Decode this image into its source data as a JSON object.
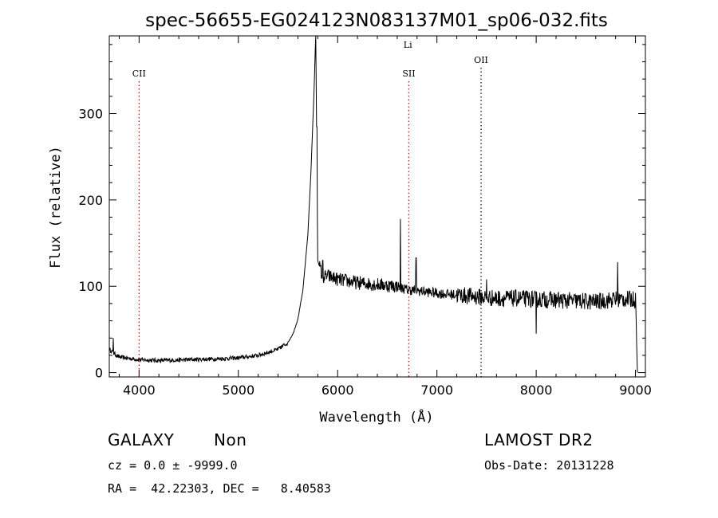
{
  "chart_data": {
    "type": "line",
    "title": "spec-56655-EG024123N083137M01_sp06-032.fits",
    "xlabel": "Wavelength (Å)",
    "ylabel": "Flux (relative)",
    "xlim": [
      3700,
      9100
    ],
    "ylim": [
      -5,
      390
    ],
    "xticks": [
      4000,
      5000,
      6000,
      7000,
      8000,
      9000
    ],
    "xtick_labels": [
      "4000",
      "5000",
      "6000",
      "7000",
      "8000",
      "9000"
    ],
    "yticks": [
      0,
      100,
      200,
      300
    ],
    "ytick_labels": [
      "0",
      "100",
      "200",
      "300"
    ],
    "grid": false,
    "line_color": "#000000",
    "spectrum_anchors": {
      "x": [
        3700,
        3750,
        3800,
        4000,
        4200,
        4500,
        4800,
        5000,
        5200,
        5400,
        5500,
        5550,
        5600,
        5650,
        5700,
        5730,
        5760,
        5780,
        5800,
        5850,
        5900,
        6000,
        6200,
        6400,
        6600,
        6700,
        6800,
        7000,
        7200,
        7400,
        7600,
        7800,
        8000,
        8200,
        8400,
        8600,
        8800,
        8900,
        9000,
        9020
      ],
      "y": [
        27,
        22,
        18,
        15,
        14,
        15,
        16,
        17,
        20,
        27,
        35,
        45,
        62,
        95,
        160,
        230,
        320,
        392,
        130,
        110,
        112,
        108,
        104,
        102,
        100,
        96,
        95,
        92,
        90,
        88,
        86,
        86,
        85,
        84,
        83,
        82,
        85,
        85,
        85,
        0
      ]
    },
    "spike_features": [
      {
        "x": 3740,
        "y": 40
      },
      {
        "x": 5790,
        "y": 285
      },
      {
        "x": 5850,
        "y": 130
      },
      {
        "x": 6632,
        "y": 178
      },
      {
        "x": 6790,
        "y": 133
      },
      {
        "x": 7500,
        "y": 108
      },
      {
        "x": 8000,
        "y": 45
      },
      {
        "x": 8820,
        "y": 128
      }
    ],
    "lines": [
      {
        "label": "CII",
        "x": 4000,
        "color": "#cc0000",
        "level": 1
      },
      {
        "label": "Li",
        "x": 6707,
        "color": "#cc0000",
        "level": 0
      },
      {
        "label": "SII",
        "x": 6717,
        "color": "#cc0000",
        "level": 1
      },
      {
        "label": "OII",
        "x": 7445,
        "color": "#000000",
        "level": 2
      }
    ]
  },
  "info": {
    "class_label": "GALAXY",
    "subclass_label": "Non",
    "survey_label": "LAMOST DR2",
    "cz_text": "cz = 0.0 ± -9999.0",
    "obs_date_text": "Obs-Date: 20131228",
    "radec_text": "RA =  42.22303, DEC =   8.40583"
  }
}
